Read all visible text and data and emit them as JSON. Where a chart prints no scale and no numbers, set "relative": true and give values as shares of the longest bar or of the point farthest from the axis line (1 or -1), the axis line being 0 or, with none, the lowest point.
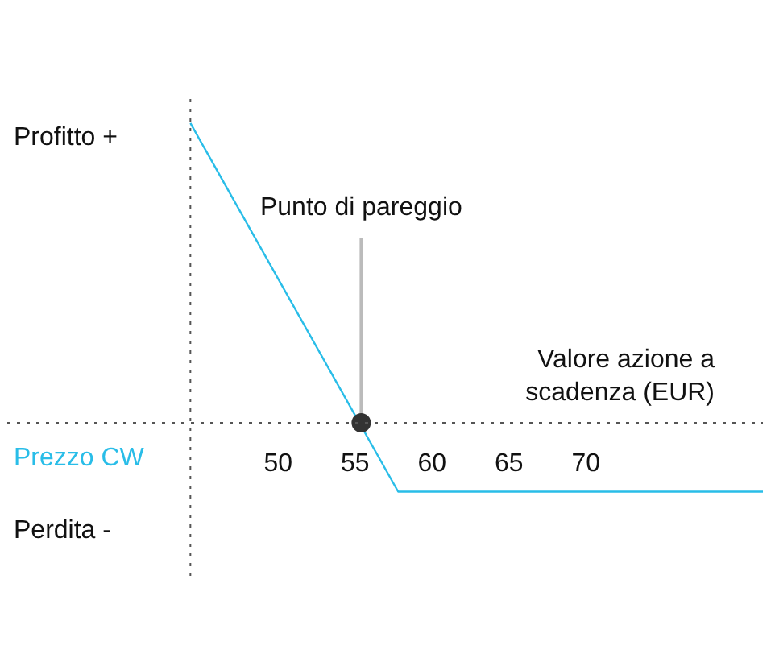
{
  "chart_data": {
    "type": "line",
    "relative": true,
    "xlabel": "Valore azione a\nscadenza (EUR)",
    "x": [
      44.3,
      57.8,
      81.5
    ],
    "series": [
      {
        "name": "Prezzo CW",
        "color": "#29bde8",
        "values": [
          1,
          -0.23,
          -0.23
        ]
      }
    ],
    "xlim": [
      32.4,
      81.5
    ],
    "ref_lines": [
      {
        "axis": "x",
        "value": 44.3,
        "color": "#555555",
        "line_style": "dotted"
      }
    ],
    "xticks": [
      50,
      55,
      60,
      65,
      70
    ],
    "annotations": [
      {
        "text": "Punto di pareggio",
        "x": 55.4,
        "y": 0
      },
      "Profitto +",
      "Perdita -"
    ],
    "grid": false
  }
}
